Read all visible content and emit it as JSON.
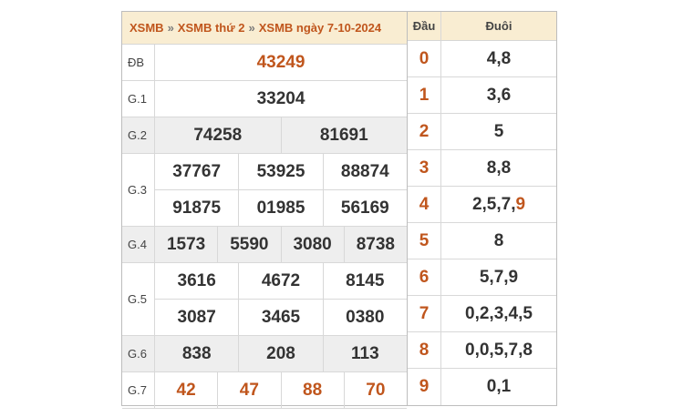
{
  "breadcrumb": [
    "XSMB",
    "XSMB thứ 2",
    "XSMB ngày 7-10-2024"
  ],
  "breadcrumb_sep": "»",
  "prizes": [
    {
      "label": "ĐB",
      "rows": [
        [
          "43249"
        ]
      ],
      "highlight": true
    },
    {
      "label": "G.1",
      "rows": [
        [
          "33204"
        ]
      ]
    },
    {
      "label": "G.2",
      "rows": [
        [
          "74258",
          "81691"
        ]
      ]
    },
    {
      "label": "G.3",
      "rows": [
        [
          "37767",
          "53925",
          "88874"
        ],
        [
          "91875",
          "01985",
          "56169"
        ]
      ]
    },
    {
      "label": "G.4",
      "rows": [
        [
          "1573",
          "5590",
          "3080",
          "8738"
        ]
      ]
    },
    {
      "label": "G.5",
      "rows": [
        [
          "3616",
          "4672",
          "8145"
        ],
        [
          "3087",
          "3465",
          "0380"
        ]
      ]
    },
    {
      "label": "G.6",
      "rows": [
        [
          "838",
          "208",
          "113"
        ]
      ]
    },
    {
      "label": "G.7",
      "rows": [
        [
          "42",
          "47",
          "88",
          "70"
        ]
      ],
      "highlight": true
    }
  ],
  "loto": {
    "head_label": "Đầu",
    "tail_label": "Đuôi",
    "rows": [
      {
        "head": "0",
        "tail": "4,8"
      },
      {
        "head": "1",
        "tail": "3,6"
      },
      {
        "head": "2",
        "tail": "5"
      },
      {
        "head": "3",
        "tail": "8,8"
      },
      {
        "head": "4",
        "tail": "2,5,7,",
        "tail_highlight": "9"
      },
      {
        "head": "5",
        "tail": "8"
      },
      {
        "head": "6",
        "tail": "5,7,9"
      },
      {
        "head": "7",
        "tail": "0,2,3,4,5"
      },
      {
        "head": "8",
        "tail": "0,0,5,7,8"
      },
      {
        "head": "9",
        "tail": "0,1"
      }
    ]
  },
  "colors": {
    "accent": "#c0561d",
    "header_bg": "#f9edd2",
    "row_alt": "#eeeeee"
  }
}
